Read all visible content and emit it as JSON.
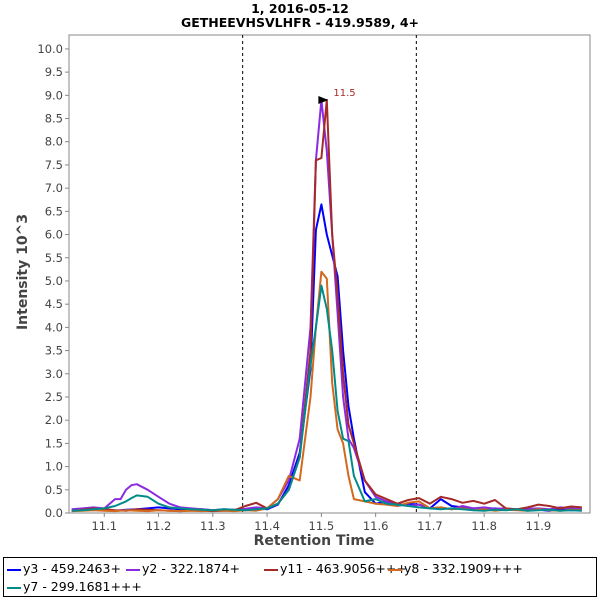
{
  "chart_data": {
    "type": "line",
    "title": "1, 2016-05-12",
    "subtitle": "GETHEEVHSVLHFR - 419.9589, 4+",
    "xlabel": "Retention Time",
    "ylabel": "Intensity 10^3",
    "xlim": [
      11.035,
      11.995
    ],
    "ylim": [
      0,
      10.3
    ],
    "xticks": [
      "11.1",
      "11.2",
      "11.3",
      "11.4",
      "11.5",
      "11.6",
      "11.7",
      "11.8",
      "11.9"
    ],
    "yticks": [
      "0.0",
      "0.5",
      "1.0",
      "1.5",
      "2.0",
      "2.5",
      "3.0",
      "3.5",
      "4.0",
      "4.5",
      "5.0",
      "5.5",
      "6.0",
      "6.5",
      "7.0",
      "7.5",
      "8.0",
      "8.5",
      "9.0",
      "9.5",
      "10.0"
    ],
    "boundaries": [
      11.355,
      11.675
    ],
    "peak_annotation": {
      "label": "11.5",
      "x": 11.5,
      "y": 8.9
    },
    "grid": false,
    "legend_position": "bottom",
    "series": [
      {
        "name": "y3 - 459.2463+",
        "color": "#0000ff",
        "x": [
          11.04,
          11.06,
          11.08,
          11.1,
          11.12,
          11.14,
          11.16,
          11.18,
          11.2,
          11.22,
          11.24,
          11.26,
          11.28,
          11.3,
          11.32,
          11.34,
          11.36,
          11.38,
          11.4,
          11.42,
          11.44,
          11.46,
          11.48,
          11.49,
          11.5,
          11.51,
          11.52,
          11.53,
          11.54,
          11.55,
          11.56,
          11.58,
          11.6,
          11.62,
          11.64,
          11.66,
          11.68,
          11.7,
          11.72,
          11.74,
          11.76,
          11.78,
          11.8,
          11.82,
          11.84,
          11.86,
          11.88,
          11.9,
          11.92,
          11.94,
          11.96,
          11.98
        ],
        "y": [
          0.06,
          0.07,
          0.09,
          0.08,
          0.05,
          0.07,
          0.08,
          0.1,
          0.12,
          0.1,
          0.08,
          0.07,
          0.08,
          0.06,
          0.07,
          0.06,
          0.08,
          0.1,
          0.08,
          0.18,
          0.6,
          1.3,
          3.1,
          6.1,
          6.65,
          6.0,
          5.55,
          5.1,
          3.5,
          2.3,
          1.6,
          0.45,
          0.2,
          0.25,
          0.15,
          0.2,
          0.18,
          0.1,
          0.3,
          0.15,
          0.12,
          0.1,
          0.08,
          0.1,
          0.07,
          0.08,
          0.06,
          0.07,
          0.05,
          0.08,
          0.06,
          0.07
        ]
      },
      {
        "name": "y2 - 322.1874+",
        "color": "#8a2be2",
        "x": [
          11.04,
          11.06,
          11.08,
          11.1,
          11.11,
          11.12,
          11.13,
          11.14,
          11.15,
          11.16,
          11.18,
          11.2,
          11.22,
          11.24,
          11.26,
          11.28,
          11.3,
          11.32,
          11.34,
          11.36,
          11.38,
          11.4,
          11.42,
          11.44,
          11.46,
          11.48,
          11.49,
          11.5,
          11.51,
          11.52,
          11.53,
          11.54,
          11.55,
          11.56,
          11.58,
          11.6,
          11.62,
          11.64,
          11.66,
          11.68,
          11.7,
          11.72,
          11.74,
          11.76,
          11.78,
          11.8,
          11.82,
          11.84,
          11.86,
          11.88,
          11.9,
          11.92,
          11.94,
          11.96,
          11.98
        ],
        "y": [
          0.08,
          0.1,
          0.12,
          0.1,
          0.2,
          0.3,
          0.3,
          0.5,
          0.6,
          0.62,
          0.5,
          0.35,
          0.2,
          0.12,
          0.1,
          0.08,
          0.06,
          0.08,
          0.07,
          0.09,
          0.12,
          0.1,
          0.3,
          0.7,
          1.6,
          4.0,
          7.6,
          8.9,
          7.8,
          6.0,
          4.3,
          2.5,
          1.6,
          1.4,
          0.7,
          0.35,
          0.25,
          0.2,
          0.15,
          0.18,
          0.1,
          0.12,
          0.08,
          0.15,
          0.1,
          0.12,
          0.09,
          0.1,
          0.08,
          0.09,
          0.1,
          0.08,
          0.12,
          0.1,
          0.08
        ]
      },
      {
        "name": "y11 - 463.9056+++",
        "color": "#a52a2a",
        "x": [
          11.04,
          11.06,
          11.08,
          11.1,
          11.12,
          11.14,
          11.16,
          11.18,
          11.2,
          11.22,
          11.24,
          11.26,
          11.28,
          11.3,
          11.32,
          11.34,
          11.36,
          11.38,
          11.4,
          11.42,
          11.44,
          11.46,
          11.48,
          11.49,
          11.5,
          11.51,
          11.52,
          11.53,
          11.54,
          11.55,
          11.56,
          11.58,
          11.6,
          11.62,
          11.64,
          11.66,
          11.68,
          11.7,
          11.72,
          11.74,
          11.76,
          11.78,
          11.8,
          11.82,
          11.84,
          11.86,
          11.88,
          11.9,
          11.92,
          11.94,
          11.96,
          11.98
        ],
        "y": [
          0.05,
          0.07,
          0.1,
          0.08,
          0.06,
          0.05,
          0.08,
          0.07,
          0.06,
          0.05,
          0.04,
          0.06,
          0.05,
          0.04,
          0.05,
          0.06,
          0.15,
          0.22,
          0.1,
          0.2,
          0.5,
          1.2,
          3.5,
          7.6,
          7.65,
          8.9,
          6.0,
          4.7,
          3.0,
          1.9,
          1.5,
          0.7,
          0.4,
          0.3,
          0.2,
          0.28,
          0.32,
          0.2,
          0.35,
          0.3,
          0.22,
          0.26,
          0.2,
          0.28,
          0.1,
          0.08,
          0.12,
          0.18,
          0.15,
          0.1,
          0.14,
          0.12
        ]
      },
      {
        "name": "y8 - 332.1909+++",
        "color": "#d2691e",
        "x": [
          11.04,
          11.06,
          11.08,
          11.1,
          11.12,
          11.14,
          11.16,
          11.18,
          11.2,
          11.22,
          11.24,
          11.26,
          11.28,
          11.3,
          11.32,
          11.34,
          11.36,
          11.38,
          11.4,
          11.42,
          11.44,
          11.46,
          11.48,
          11.49,
          11.5,
          11.51,
          11.52,
          11.53,
          11.54,
          11.55,
          11.56,
          11.58,
          11.6,
          11.62,
          11.64,
          11.66,
          11.68,
          11.7,
          11.72,
          11.74,
          11.76,
          11.78,
          11.8,
          11.82,
          11.84,
          11.86,
          11.88,
          11.9,
          11.92,
          11.94,
          11.96,
          11.98
        ],
        "y": [
          0.04,
          0.05,
          0.06,
          0.05,
          0.04,
          0.06,
          0.05,
          0.04,
          0.06,
          0.05,
          0.04,
          0.05,
          0.04,
          0.06,
          0.05,
          0.04,
          0.06,
          0.05,
          0.1,
          0.3,
          0.8,
          0.7,
          2.5,
          4.0,
          5.2,
          5.05,
          2.8,
          1.8,
          1.5,
          0.8,
          0.3,
          0.25,
          0.2,
          0.18,
          0.15,
          0.22,
          0.25,
          0.1,
          0.12,
          0.08,
          0.1,
          0.06,
          0.08,
          0.05,
          0.07,
          0.06,
          0.05,
          0.08,
          0.06,
          0.05,
          0.07,
          0.06
        ]
      },
      {
        "name": "y7 - 299.1681+++",
        "color": "#008b8b",
        "x": [
          11.04,
          11.06,
          11.08,
          11.1,
          11.12,
          11.14,
          11.15,
          11.16,
          11.18,
          11.2,
          11.22,
          11.24,
          11.26,
          11.28,
          11.3,
          11.32,
          11.34,
          11.36,
          11.38,
          11.4,
          11.42,
          11.44,
          11.46,
          11.48,
          11.49,
          11.5,
          11.51,
          11.52,
          11.53,
          11.54,
          11.55,
          11.56,
          11.58,
          11.6,
          11.62,
          11.64,
          11.66,
          11.68,
          11.7,
          11.72,
          11.74,
          11.76,
          11.78,
          11.8,
          11.82,
          11.84,
          11.86,
          11.88,
          11.9,
          11.92,
          11.94,
          11.96,
          11.98
        ],
        "y": [
          0.05,
          0.06,
          0.08,
          0.1,
          0.15,
          0.25,
          0.32,
          0.38,
          0.35,
          0.2,
          0.12,
          0.1,
          0.08,
          0.07,
          0.06,
          0.08,
          0.07,
          0.06,
          0.08,
          0.1,
          0.2,
          0.5,
          1.2,
          3.2,
          4.0,
          4.9,
          4.4,
          3.5,
          2.2,
          1.6,
          1.55,
          0.8,
          0.25,
          0.3,
          0.2,
          0.18,
          0.15,
          0.12,
          0.1,
          0.08,
          0.1,
          0.08,
          0.06,
          0.05,
          0.07,
          0.06,
          0.08,
          0.05,
          0.06,
          0.07,
          0.05,
          0.06,
          0.05
        ]
      }
    ]
  }
}
